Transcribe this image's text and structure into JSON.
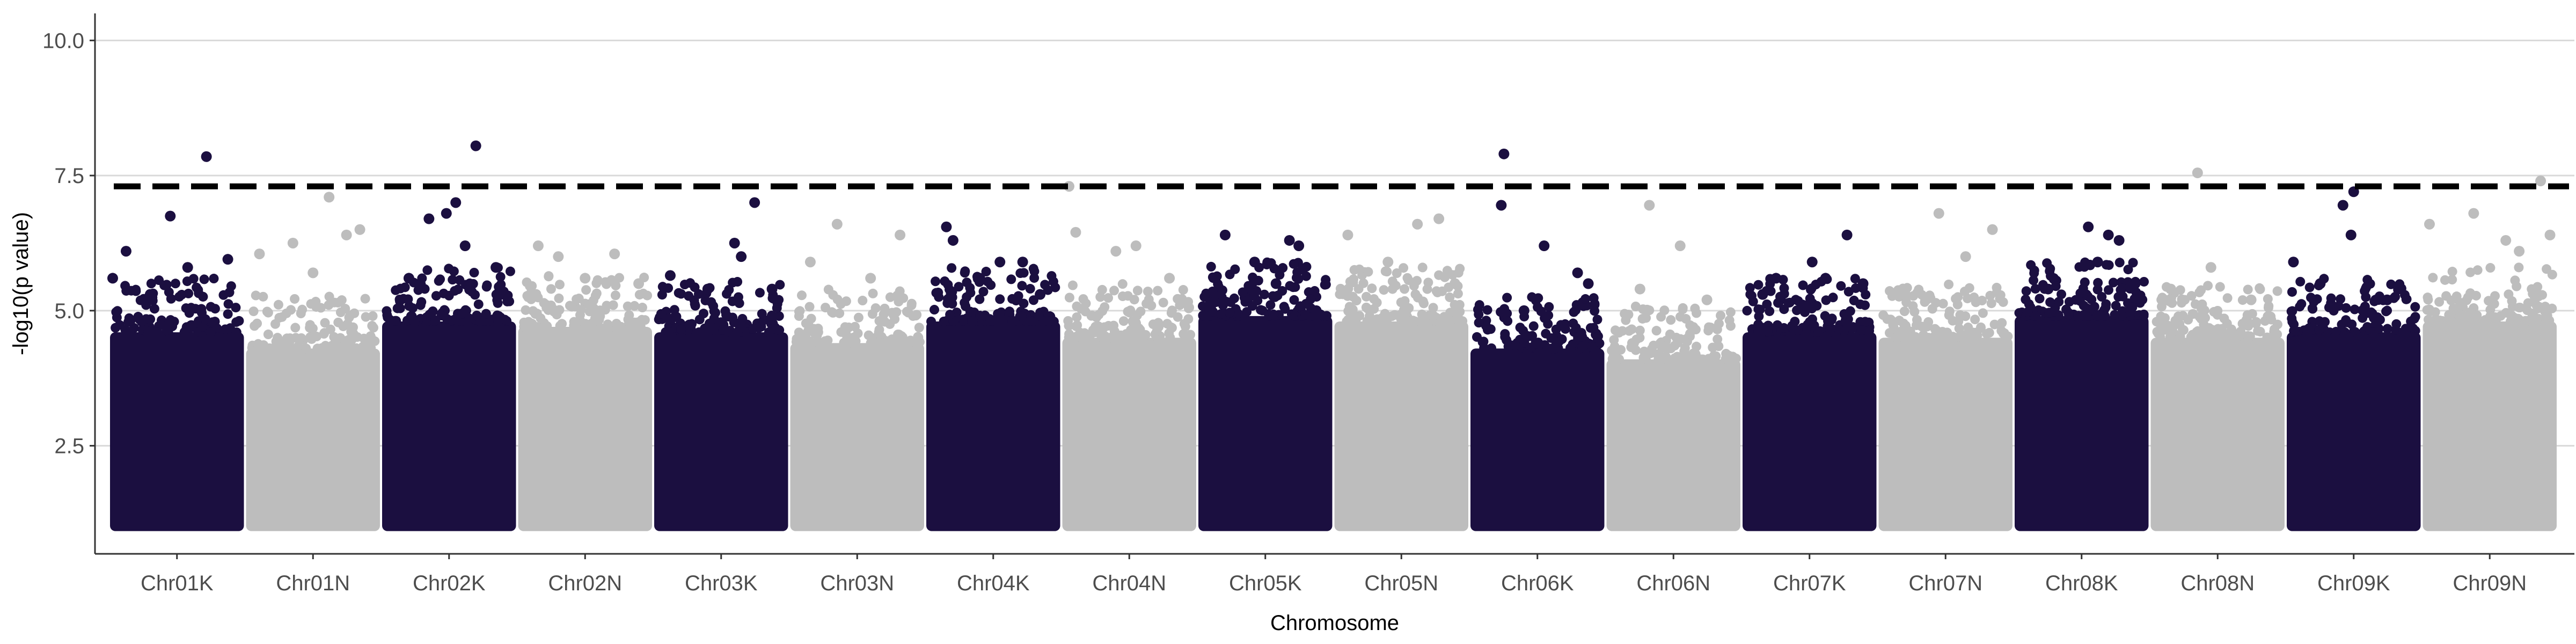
{
  "chart_data": {
    "type": "scatter",
    "title": "",
    "xlabel": "Chromosome",
    "ylabel": "-log10(p value)",
    "ylim": [
      0.5,
      10.5
    ],
    "y_ticks": [
      2.5,
      5.0,
      7.5,
      10.0
    ],
    "y_tick_labels": [
      "2.5",
      "5.0",
      "7.5",
      "10.0"
    ],
    "grid": "horizontal major gridlines",
    "legend": "none",
    "threshold": 7.3,
    "threshold_style": "dashed black line",
    "colors": {
      "odd_chromosome": "#1b0f40",
      "even_chromosome": "#bdbdbd",
      "grid": "#d9d9d9",
      "threshold": "#000000"
    },
    "p_value_floor": 1.0,
    "categories": [
      "Chr01K",
      "Chr01N",
      "Chr02K",
      "Chr02N",
      "Chr03K",
      "Chr03N",
      "Chr04K",
      "Chr04N",
      "Chr05K",
      "Chr05N",
      "Chr06K",
      "Chr06N",
      "Chr07K",
      "Chr07N",
      "Chr08K",
      "Chr08N",
      "Chr09K",
      "Chr09N"
    ],
    "series": [
      {
        "chromosome": "Chr01K",
        "color": "#1b0f40",
        "dense_top": 4.6,
        "peaks": [
          [
            0.12,
            6.1
          ],
          [
            0.02,
            5.6
          ],
          [
            0.45,
            6.75
          ],
          [
            0.72,
            7.85
          ],
          [
            0.58,
            5.8
          ],
          [
            0.88,
            5.95
          ],
          [
            0.3,
            5.3
          ]
        ]
      },
      {
        "chromosome": "Chr01N",
        "color": "#bdbdbd",
        "dense_top": 4.3,
        "peaks": [
          [
            0.1,
            6.05
          ],
          [
            0.35,
            6.25
          ],
          [
            0.62,
            7.1
          ],
          [
            0.85,
            6.5
          ],
          [
            0.75,
            6.4
          ],
          [
            0.5,
            5.7
          ]
        ]
      },
      {
        "chromosome": "Chr02K",
        "color": "#1b0f40",
        "dense_top": 4.8,
        "peaks": [
          [
            0.35,
            6.7
          ],
          [
            0.55,
            7.0
          ],
          [
            0.48,
            6.8
          ],
          [
            0.7,
            8.05
          ],
          [
            0.2,
            5.6
          ],
          [
            0.85,
            5.8
          ],
          [
            0.62,
            6.2
          ]
        ]
      },
      {
        "chromosome": "Chr02N",
        "color": "#bdbdbd",
        "dense_top": 4.7,
        "peaks": [
          [
            0.15,
            6.2
          ],
          [
            0.3,
            6.0
          ],
          [
            0.72,
            6.05
          ],
          [
            0.5,
            5.6
          ],
          [
            0.9,
            5.5
          ]
        ]
      },
      {
        "chromosome": "Chr03K",
        "color": "#1b0f40",
        "dense_top": 4.6,
        "peaks": [
          [
            0.12,
            5.65
          ],
          [
            0.6,
            6.25
          ],
          [
            0.65,
            6.0
          ],
          [
            0.75,
            7.0
          ],
          [
            0.4,
            5.4
          ],
          [
            0.88,
            5.4
          ]
        ]
      },
      {
        "chromosome": "Chr03N",
        "color": "#bdbdbd",
        "dense_top": 4.4,
        "peaks": [
          [
            0.35,
            6.6
          ],
          [
            0.82,
            6.4
          ],
          [
            0.6,
            5.6
          ],
          [
            0.15,
            5.9
          ]
        ]
      },
      {
        "chromosome": "Chr04K",
        "color": "#1b0f40",
        "dense_top": 4.8,
        "peaks": [
          [
            0.15,
            6.55
          ],
          [
            0.2,
            6.3
          ],
          [
            0.55,
            5.9
          ],
          [
            0.72,
            5.9
          ],
          [
            0.4,
            5.6
          ],
          [
            0.85,
            5.3
          ]
        ]
      },
      {
        "chromosome": "Chr04N",
        "color": "#bdbdbd",
        "dense_top": 4.5,
        "peaks": [
          [
            0.05,
            7.3
          ],
          [
            0.1,
            6.45
          ],
          [
            0.4,
            6.1
          ],
          [
            0.55,
            6.2
          ],
          [
            0.8,
            5.6
          ]
        ]
      },
      {
        "chromosome": "Chr05K",
        "color": "#1b0f40",
        "dense_top": 4.9,
        "peaks": [
          [
            0.2,
            6.4
          ],
          [
            0.42,
            5.9
          ],
          [
            0.68,
            6.3
          ],
          [
            0.75,
            6.2
          ],
          [
            0.58,
            5.5
          ],
          [
            0.88,
            5.0
          ]
        ]
      },
      {
        "chromosome": "Chr05N",
        "color": "#bdbdbd",
        "dense_top": 4.8,
        "peaks": [
          [
            0.1,
            6.4
          ],
          [
            0.62,
            6.6
          ],
          [
            0.78,
            6.7
          ],
          [
            0.4,
            5.9
          ],
          [
            0.9,
            5.5
          ]
        ]
      },
      {
        "chromosome": "Chr06K",
        "color": "#1b0f40",
        "dense_top": 4.3,
        "peaks": [
          [
            0.25,
            7.9
          ],
          [
            0.23,
            6.95
          ],
          [
            0.55,
            6.2
          ],
          [
            0.8,
            5.7
          ],
          [
            0.88,
            5.5
          ],
          [
            0.4,
            5.0
          ]
        ]
      },
      {
        "chromosome": "Chr06N",
        "color": "#bdbdbd",
        "dense_top": 4.1,
        "peaks": [
          [
            0.32,
            6.95
          ],
          [
            0.55,
            6.2
          ],
          [
            0.25,
            5.4
          ],
          [
            0.75,
            5.2
          ]
        ]
      },
      {
        "chromosome": "Chr07K",
        "color": "#1b0f40",
        "dense_top": 4.6,
        "peaks": [
          [
            0.25,
            5.6
          ],
          [
            0.52,
            5.9
          ],
          [
            0.78,
            6.4
          ],
          [
            0.62,
            5.6
          ],
          [
            0.15,
            5.3
          ],
          [
            0.9,
            5.5
          ]
        ]
      },
      {
        "chromosome": "Chr07N",
        "color": "#bdbdbd",
        "dense_top": 4.5,
        "peaks": [
          [
            0.45,
            6.8
          ],
          [
            0.85,
            6.5
          ],
          [
            0.65,
            6.0
          ],
          [
            0.2,
            5.3
          ]
        ]
      },
      {
        "chromosome": "Chr08K",
        "color": "#1b0f40",
        "dense_top": 4.9,
        "peaks": [
          [
            0.55,
            6.55
          ],
          [
            0.7,
            6.4
          ],
          [
            0.78,
            6.3
          ],
          [
            0.62,
            5.9
          ],
          [
            0.25,
            5.4
          ],
          [
            0.9,
            5.5
          ]
        ]
      },
      {
        "chromosome": "Chr08N",
        "color": "#bdbdbd",
        "dense_top": 4.5,
        "peaks": [
          [
            0.35,
            7.55
          ],
          [
            0.45,
            5.8
          ],
          [
            0.15,
            5.4
          ],
          [
            0.75,
            5.2
          ]
        ]
      },
      {
        "chromosome": "Chr09K",
        "color": "#1b0f40",
        "dense_top": 4.6,
        "peaks": [
          [
            0.05,
            5.9
          ],
          [
            0.42,
            6.95
          ],
          [
            0.5,
            7.2
          ],
          [
            0.48,
            6.4
          ],
          [
            0.25,
            5.5
          ],
          [
            0.75,
            5.2
          ]
        ]
      },
      {
        "chromosome": "Chr09N",
        "color": "#bdbdbd",
        "dense_top": 4.8,
        "peaks": [
          [
            0.05,
            6.6
          ],
          [
            0.38,
            6.8
          ],
          [
            0.62,
            6.3
          ],
          [
            0.88,
            7.4
          ],
          [
            0.95,
            6.4
          ],
          [
            0.72,
            6.1
          ]
        ]
      }
    ]
  }
}
